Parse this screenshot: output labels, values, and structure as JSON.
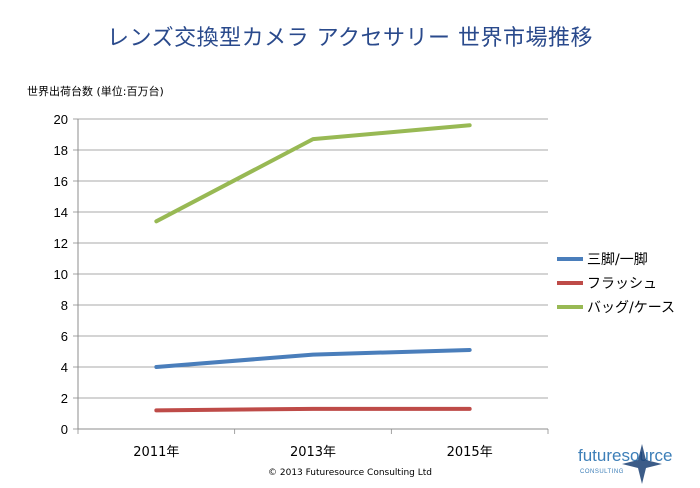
{
  "title": "レンズ交換型カメラ アクセサリー 世界市場推移",
  "copyright": "© 2013 Futuresource Consulting Ltd",
  "logo": {
    "word": "futuresource",
    "sub": "CONSULTING"
  },
  "chart_data": {
    "type": "line",
    "ylabel": "世界出荷台数 (単位:百万台)",
    "categories": [
      "2011年",
      "2013年",
      "2015年"
    ],
    "ylim": [
      0,
      20
    ],
    "yticks": [
      0,
      2,
      4,
      6,
      8,
      10,
      12,
      14,
      16,
      18,
      20
    ],
    "grid": true,
    "legend_position": "right",
    "series": [
      {
        "name": "三脚/一脚",
        "color": "#4a7ebb",
        "values": [
          4.0,
          4.8,
          5.1
        ]
      },
      {
        "name": "フラッシュ",
        "color": "#be4b48",
        "values": [
          1.2,
          1.3,
          1.3
        ]
      },
      {
        "name": "バッグ/ケース",
        "color": "#98b954",
        "values": [
          13.4,
          18.7,
          19.6
        ]
      }
    ]
  }
}
